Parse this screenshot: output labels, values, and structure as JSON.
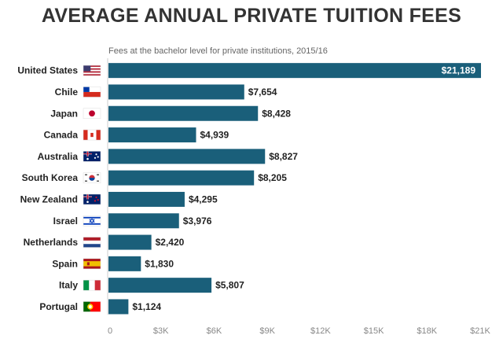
{
  "chart_data": {
    "type": "bar",
    "orientation": "horizontal",
    "title": "AVERAGE ANNUAL PRIVATE TUITION FEES",
    "subtitle": "Fees at the bachelor level for private institutions, 2015/16",
    "categories": [
      "United States",
      "Chile",
      "Japan",
      "Canada",
      "Australia",
      "South Korea",
      "New Zealand",
      "Israel",
      "Netherlands",
      "Spain",
      "Italy",
      "Portugal"
    ],
    "values": [
      21189,
      7654,
      8428,
      4939,
      8827,
      8205,
      4295,
      3976,
      2420,
      1830,
      5807,
      1124
    ],
    "value_labels": [
      "$21,189",
      "$7,654",
      "$8,428",
      "$4,939",
      "$8,827",
      "$8,205",
      "$4,295",
      "$3,976",
      "$2,420",
      "$1,830",
      "$5,807",
      "$1,124"
    ],
    "flag_icons": [
      "us-flag-icon",
      "chile-flag-icon",
      "japan-flag-icon",
      "canada-flag-icon",
      "australia-flag-icon",
      "south-korea-flag-icon",
      "new-zealand-flag-icon",
      "israel-flag-icon",
      "netherlands-flag-icon",
      "spain-flag-icon",
      "italy-flag-icon",
      "portugal-flag-icon"
    ],
    "xlim": [
      0,
      21000
    ],
    "xticks": [
      0,
      3000,
      6000,
      9000,
      12000,
      15000,
      18000,
      21000
    ],
    "xtick_labels": [
      "0",
      "$3K",
      "$6K",
      "$9K",
      "$12K",
      "$15K",
      "$18K",
      "$21K"
    ],
    "bar_color": "#1a5f7a",
    "grid": false
  }
}
